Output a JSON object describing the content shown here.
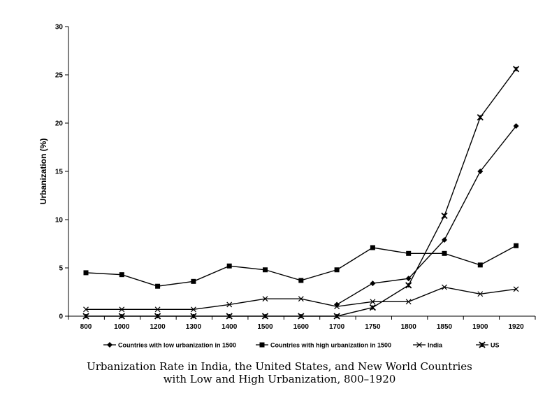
{
  "chart_data": {
    "type": "line",
    "title": "Urbanization Rate in India, the United States, and New World Countries",
    "subtitle": "with Low and High Urbanization, 800–1920",
    "xlabel": "",
    "ylabel": "Urbanization (%)",
    "ylim": [
      0,
      30
    ],
    "yticks": [
      "0",
      "5",
      "10",
      "15",
      "20",
      "25",
      "30"
    ],
    "categories": [
      "800",
      "1000",
      "1200",
      "1300",
      "1400",
      "1500",
      "1600",
      "1700",
      "1750",
      "1800",
      "1850",
      "1900",
      "1920"
    ],
    "grid": false,
    "legend_position": "bottom",
    "series": [
      {
        "name": "Countries with low urbanization in 1500",
        "marker": "diamond",
        "values": [
          null,
          null,
          null,
          null,
          null,
          null,
          null,
          1.2,
          3.4,
          3.9,
          7.9,
          15.0,
          19.7
        ]
      },
      {
        "name": "Countries with high urbanization in 1500",
        "marker": "square",
        "values": [
          4.5,
          4.3,
          3.1,
          3.6,
          5.2,
          4.8,
          3.7,
          4.8,
          7.1,
          6.5,
          6.5,
          5.3,
          7.3
        ]
      },
      {
        "name": "India",
        "marker": "x",
        "values": [
          0.7,
          0.7,
          0.7,
          0.7,
          1.2,
          1.8,
          1.8,
          1.0,
          1.5,
          1.5,
          3.0,
          2.3,
          2.8
        ]
      },
      {
        "name": "US",
        "marker": "star",
        "values": [
          0,
          0,
          0,
          0,
          0,
          0,
          0,
          0,
          0.9,
          3.2,
          10.4,
          20.6,
          25.6
        ]
      }
    ]
  }
}
